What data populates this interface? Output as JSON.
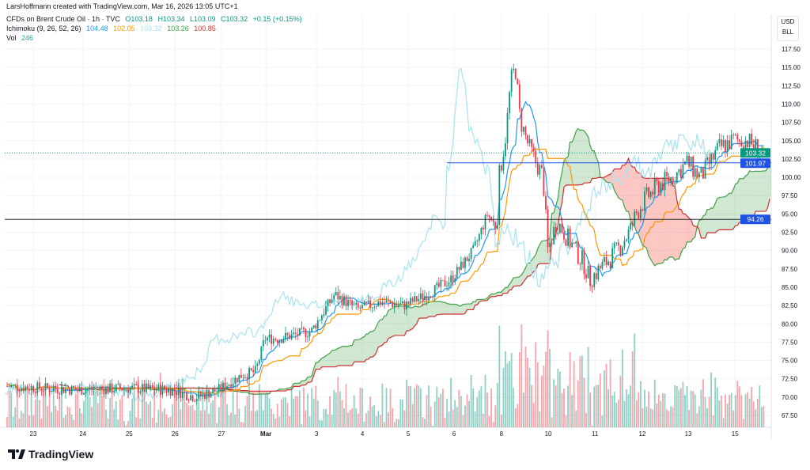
{
  "header": {
    "credit": "LarsHoffmann created with TradingView.com, Mar 16, 2026 13:05 UTC+1"
  },
  "legend": {
    "symbol": "CFDs on Brent Crude Oil · 1h · TVC",
    "ohlc": {
      "o": "O103.18",
      "h": "H103.34",
      "l": "L103.09",
      "c": "C103.32",
      "change": "+0.15 (+0.15%)"
    },
    "ichimoku": {
      "label": "Ichimoku (9, 26, 52, 26)",
      "values": [
        "104.48",
        "102.05",
        "103.32",
        "103.26",
        "100.85"
      ]
    },
    "vol": {
      "label": "Vol",
      "value": "246"
    }
  },
  "axis": {
    "currency": "USD",
    "unit": "BLL"
  },
  "colors": {
    "up": "#089981",
    "down": "#f23645",
    "tenkan": "#2196f3",
    "kijun": "#ff9800",
    "chikou": "#a7e3f0",
    "spanA": "#43a047",
    "spanB": "#d32f2f",
    "cloudUp": "rgba(67,160,71,0.25)",
    "cloudDown": "rgba(244,67,54,0.3)"
  },
  "logo": "TradingView",
  "chart_data": {
    "type": "candlestick",
    "timeframe": "1h",
    "ylim": [
      66,
      119
    ],
    "y_ticks": [
      67.5,
      70,
      72.5,
      75,
      77.5,
      80,
      82.5,
      85,
      87.5,
      90,
      92.5,
      95,
      97.5,
      100,
      102.5,
      105,
      107.5,
      110,
      112.5,
      115,
      117.5
    ],
    "x_ticks": [
      {
        "i": 0,
        "label": "23"
      },
      {
        "i": 1.07,
        "label": "24"
      },
      {
        "i": 2.07,
        "label": "25"
      },
      {
        "i": 3.06,
        "label": "26"
      },
      {
        "i": 4.06,
        "label": "27"
      },
      {
        "i": 5.02,
        "label": "Mar"
      },
      {
        "i": 6.11,
        "label": "3"
      },
      {
        "i": 7.1,
        "label": "4"
      },
      {
        "i": 8.09,
        "label": "5"
      },
      {
        "i": 9.08,
        "label": "6"
      },
      {
        "i": 10.1,
        "label": "8"
      },
      {
        "i": 11.11,
        "label": "10"
      },
      {
        "i": 12.12,
        "label": "11"
      },
      {
        "i": 13.14,
        "label": "12"
      },
      {
        "i": 14.13,
        "label": "13"
      },
      {
        "i": 15.14,
        "label": "15"
      }
    ],
    "close_path": [
      [
        -0.6,
        71.5
      ],
      [
        0,
        71.3
      ],
      [
        1,
        71
      ],
      [
        2,
        71.2
      ],
      [
        3,
        71
      ],
      [
        3.5,
        70
      ],
      [
        4,
        71
      ],
      [
        4.5,
        73
      ],
      [
        4.8,
        73.5
      ],
      [
        5,
        78
      ],
      [
        5.3,
        78
      ],
      [
        6,
        79
      ],
      [
        6.5,
        84
      ],
      [
        7,
        82
      ],
      [
        7.5,
        83
      ],
      [
        8,
        82.5
      ],
      [
        8.5,
        84
      ],
      [
        9,
        86
      ],
      [
        9.5,
        90
      ],
      [
        9.8,
        95
      ],
      [
        10,
        93
      ],
      [
        10.05,
        100
      ],
      [
        10.2,
        106
      ],
      [
        10.3,
        113
      ],
      [
        10.4,
        115
      ],
      [
        10.5,
        108
      ],
      [
        10.7,
        104
      ],
      [
        11,
        100
      ],
      [
        11.1,
        90
      ],
      [
        11.3,
        94
      ],
      [
        11.6,
        91
      ],
      [
        11.9,
        88
      ],
      [
        12,
        86
      ],
      [
        12.3,
        88
      ],
      [
        12.6,
        90
      ],
      [
        12.9,
        93
      ],
      [
        13,
        95
      ],
      [
        13.2,
        97
      ],
      [
        13.5,
        99
      ],
      [
        13.8,
        100
      ],
      [
        14.1,
        102
      ],
      [
        14.4,
        100
      ],
      [
        14.8,
        104
      ],
      [
        15.1,
        105
      ],
      [
        15.4,
        105
      ],
      [
        15.75,
        103.32
      ]
    ],
    "last_price": 103.32,
    "price_labels": [
      {
        "value": "103.32",
        "color": "#089981"
      },
      {
        "value": "101.97",
        "color": "#1e53e5"
      },
      {
        "value": "94.26",
        "color": "#1e53e5"
      }
    ],
    "hlines": [
      101.97,
      94.26
    ]
  }
}
